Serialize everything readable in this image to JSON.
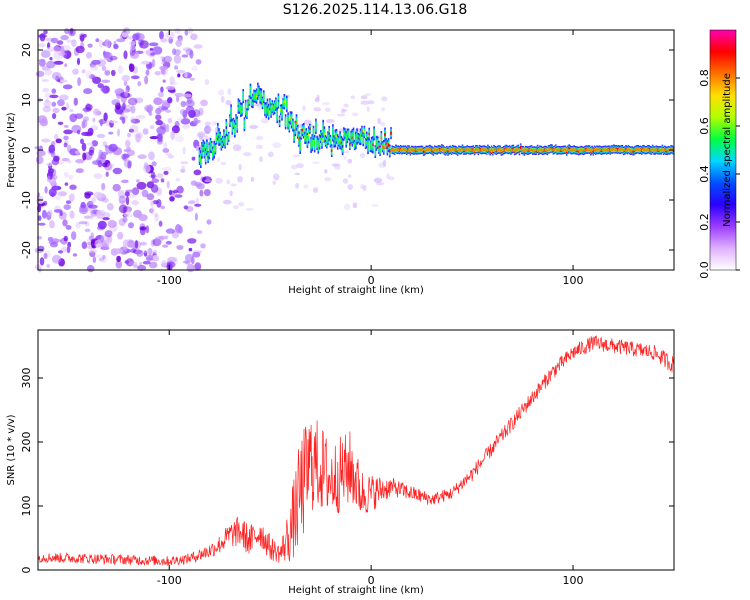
{
  "title": "S126.2025.114.13.06.G18",
  "chart_data": [
    {
      "type": "heatmap",
      "xlabel": "Height of straight line (km)",
      "ylabel": "Frequency (Hz)",
      "xlim": [
        -165,
        150
      ],
      "ylim": [
        -24,
        24
      ],
      "xticks": [
        -100,
        0,
        100
      ],
      "yticks": [
        -20,
        -10,
        0,
        10,
        20
      ],
      "colorbar": {
        "label": "Normalized spectral amplitude",
        "range": [
          0,
          1
        ],
        "ticks": [
          "0.0",
          "0.2",
          "0.4",
          "0.6",
          "0.8"
        ],
        "colors": [
          "#ffffff",
          "#e0b0ff",
          "#9a3cff",
          "#2a00ff",
          "#0050ff",
          "#00d8ff",
          "#00ff40",
          "#b0ff00",
          "#ffe000",
          "#ff7000",
          "#ff0000",
          "#ff00b0"
        ]
      },
      "ridge": {
        "x": [
          -85,
          -80,
          -75,
          -70,
          -65,
          -60,
          -55,
          -50,
          -45,
          -40,
          -35,
          -30,
          -25,
          -20,
          -15,
          -10,
          -5,
          0,
          5,
          10,
          20,
          40,
          60,
          80,
          100,
          120,
          150
        ],
        "freq": [
          0,
          0.5,
          2,
          4,
          7,
          9,
          11,
          8,
          9,
          6,
          3,
          3,
          2.5,
          2,
          1.5,
          1,
          2,
          1,
          0.8,
          0,
          0,
          0,
          0,
          0,
          0,
          0,
          0
        ],
        "amplitude": [
          0.2,
          0.3,
          0.35,
          0.4,
          0.45,
          0.5,
          0.4,
          0.45,
          0.4,
          0.5,
          0.6,
          0.7,
          0.75,
          0.6,
          0.65,
          0.7,
          0.7,
          0.8,
          0.85,
          0.9,
          0.9,
          0.9,
          0.9,
          0.9,
          0.9,
          0.9,
          0.9
        ]
      }
    },
    {
      "type": "line",
      "xlabel": "Height of straight line (km)",
      "ylabel": "SNR (10 * v/v)",
      "xlim": [
        -165,
        150
      ],
      "ylim": [
        0,
        375
      ],
      "xticks": [
        -100,
        0,
        100
      ],
      "yticks": [
        0,
        100,
        200,
        300
      ],
      "color": "#ff2020",
      "envelope": {
        "x": [
          -165,
          -140,
          -120,
          -100,
          -90,
          -80,
          -75,
          -70,
          -65,
          -60,
          -55,
          -50,
          -45,
          -40,
          -35,
          -30,
          -25,
          -20,
          -15,
          -10,
          -5,
          0,
          10,
          20,
          30,
          40,
          50,
          60,
          70,
          80,
          90,
          100,
          110,
          120,
          130,
          140,
          150
        ],
        "mean": [
          20,
          18,
          16,
          14,
          18,
          30,
          40,
          55,
          60,
          45,
          60,
          35,
          25,
          60,
          120,
          170,
          160,
          140,
          150,
          160,
          120,
          120,
          130,
          120,
          110,
          120,
          150,
          190,
          230,
          270,
          310,
          340,
          355,
          350,
          345,
          340,
          320
        ],
        "spread": [
          8,
          8,
          8,
          8,
          8,
          12,
          15,
          20,
          25,
          25,
          25,
          20,
          15,
          50,
          90,
          80,
          70,
          60,
          60,
          60,
          40,
          30,
          15,
          12,
          10,
          10,
          12,
          12,
          12,
          12,
          12,
          12,
          12,
          12,
          12,
          12,
          14
        ]
      }
    }
  ]
}
